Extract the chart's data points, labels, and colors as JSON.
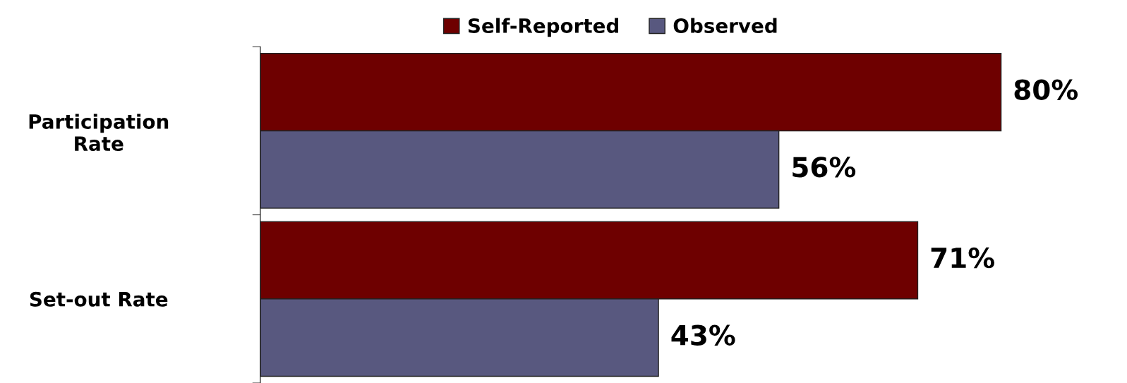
{
  "chart_data": {
    "type": "bar",
    "orientation": "horizontal",
    "categories": [
      "Participation\nRate",
      "Set-out Rate"
    ],
    "series": [
      {
        "name": "Self-Reported",
        "color": "#6e0000",
        "values": [
          80,
          71
        ],
        "value_labels": [
          "80%",
          "71%"
        ]
      },
      {
        "name": "Observed",
        "color": "#58587f",
        "values": [
          56,
          43
        ],
        "value_labels": [
          "56%",
          "43%"
        ]
      }
    ],
    "legend": "top",
    "grid": false
  }
}
